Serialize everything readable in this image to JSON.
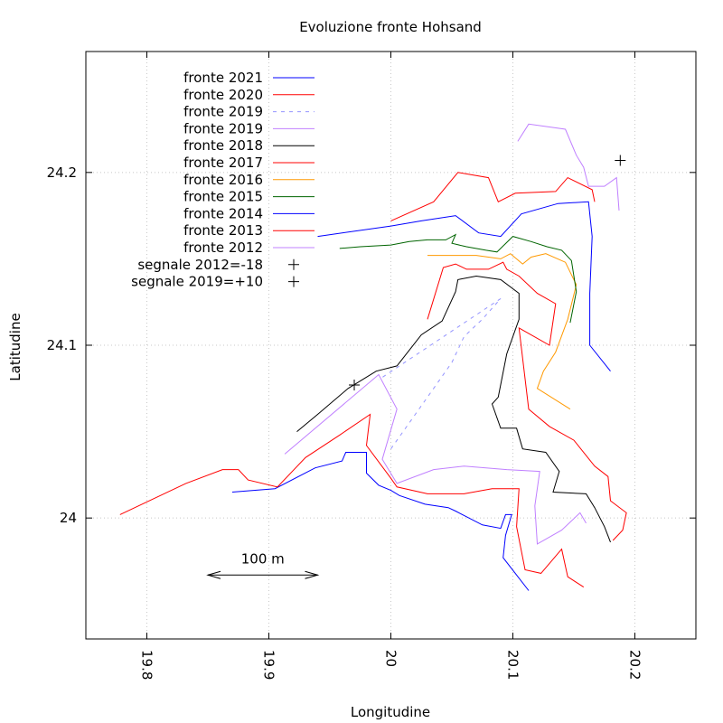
{
  "chart_data": {
    "type": "line",
    "title": "Evoluzione fronte Hohsand",
    "xlabel": "Longitudine",
    "ylabel": "Latitudine",
    "xlim": [
      19.75,
      20.25
    ],
    "ylim": [
      23.93,
      24.27
    ],
    "xticks": [
      {
        "value": 19.8,
        "label": "19.8"
      },
      {
        "value": 19.9,
        "label": "19.9"
      },
      {
        "value": 20.0,
        "label": "20"
      },
      {
        "value": 20.1,
        "label": "20.1"
      },
      {
        "value": 20.2,
        "label": "20.2"
      }
    ],
    "yticks": [
      {
        "value": 24.0,
        "label": "24"
      },
      {
        "value": 24.1,
        "label": "24.1"
      },
      {
        "value": 24.2,
        "label": "24.2"
      }
    ],
    "x_tick_label_rotation": "90deg clockwise",
    "grid": true,
    "legend_position": "top-left",
    "scale_bar": {
      "label": "100 m",
      "x": [
        19.85,
        19.94
      ],
      "y": 23.967
    },
    "series": [
      {
        "name": "fronte 2021",
        "color": "#0000ff",
        "dash": "solid",
        "points": [
          [
            19.87,
            24.015
          ],
          [
            19.905,
            24.017
          ],
          [
            19.938,
            24.029
          ],
          [
            19.96,
            24.033
          ],
          [
            19.963,
            24.038
          ],
          [
            19.98,
            24.038
          ],
          [
            19.98,
            24.026
          ],
          [
            19.99,
            24.019
          ],
          [
            20.0,
            24.016
          ],
          [
            20.007,
            24.013
          ],
          [
            20.028,
            24.008
          ],
          [
            20.047,
            24.006
          ],
          [
            20.053,
            24.004
          ],
          [
            20.075,
            23.996
          ],
          [
            20.09,
            23.994
          ],
          [
            20.094,
            24.002
          ],
          [
            20.099,
            24.002
          ],
          [
            20.094,
            23.99
          ],
          [
            20.092,
            23.977
          ],
          [
            20.113,
            23.958
          ]
        ]
      },
      {
        "name": "fronte 2020",
        "color": "#ff0000",
        "dash": "solid",
        "points": [
          [
            19.778,
            24.002
          ],
          [
            19.832,
            24.02
          ],
          [
            19.862,
            24.028
          ],
          [
            19.875,
            24.028
          ],
          [
            19.883,
            24.022
          ],
          [
            19.907,
            24.018
          ],
          [
            19.93,
            24.035
          ],
          [
            19.958,
            24.048
          ],
          [
            19.983,
            24.06
          ],
          [
            19.98,
            24.042
          ],
          [
            20.0,
            24.023
          ],
          [
            20.005,
            24.018
          ],
          [
            20.03,
            24.014
          ],
          [
            20.06,
            24.014
          ],
          [
            20.083,
            24.017
          ],
          [
            20.105,
            24.017
          ],
          [
            20.103,
            23.995
          ],
          [
            20.11,
            23.97
          ],
          [
            20.123,
            23.968
          ],
          [
            20.14,
            23.982
          ],
          [
            20.145,
            23.966
          ],
          [
            20.158,
            23.96
          ]
        ]
      },
      {
        "name": "fronte 2019",
        "color": "#9494ff",
        "dash": "dashed",
        "points": [
          [
            20.0,
            24.04
          ],
          [
            20.02,
            24.06
          ],
          [
            20.035,
            24.075
          ],
          [
            20.05,
            24.09
          ],
          [
            20.06,
            24.105
          ],
          [
            20.075,
            24.115
          ],
          [
            20.09,
            24.127
          ],
          [
            19.99,
            24.08
          ]
        ]
      },
      {
        "name": "fronte 2019",
        "color": "#c080ff",
        "dash": "solid",
        "points": [
          [
            19.913,
            24.037
          ],
          [
            19.99,
            24.083
          ],
          [
            20.005,
            24.063
          ],
          [
            19.993,
            24.034
          ],
          [
            20.005,
            24.02
          ],
          [
            20.035,
            24.028
          ],
          [
            20.06,
            24.03
          ],
          [
            20.095,
            24.028
          ],
          [
            20.122,
            24.027
          ],
          [
            20.118,
            24.007
          ],
          [
            20.12,
            23.985
          ],
          [
            20.14,
            23.993
          ],
          [
            20.155,
            24.003
          ],
          [
            20.16,
            23.997
          ]
        ]
      },
      {
        "name": "fronte 2018",
        "color": "#000000",
        "dash": "solid",
        "points": [
          [
            19.923,
            24.05
          ],
          [
            19.94,
            24.06
          ],
          [
            19.965,
            24.075
          ],
          [
            19.988,
            24.085
          ],
          [
            20.005,
            24.088
          ],
          [
            20.025,
            24.106
          ],
          [
            20.042,
            24.114
          ],
          [
            20.053,
            24.131
          ],
          [
            20.055,
            24.138
          ],
          [
            20.07,
            24.14
          ],
          [
            20.09,
            24.138
          ],
          [
            20.105,
            24.13
          ],
          [
            20.105,
            24.115
          ],
          [
            20.095,
            24.095
          ],
          [
            20.088,
            24.07
          ],
          [
            20.083,
            24.066
          ],
          [
            20.09,
            24.052
          ],
          [
            20.103,
            24.052
          ],
          [
            20.108,
            24.04
          ],
          [
            20.127,
            24.038
          ],
          [
            20.138,
            24.027
          ],
          [
            20.133,
            24.015
          ],
          [
            20.16,
            24.014
          ],
          [
            20.167,
            24.006
          ],
          [
            20.175,
            23.995
          ],
          [
            20.18,
            23.986
          ]
        ]
      },
      {
        "name": "fronte 2017",
        "color": "#ff0000",
        "dash": "solid",
        "points": [
          [
            20.0,
            24.172
          ],
          [
            20.035,
            24.183
          ],
          [
            20.055,
            24.2
          ],
          [
            20.08,
            24.197
          ],
          [
            20.088,
            24.183
          ],
          [
            20.102,
            24.188
          ],
          [
            20.135,
            24.189
          ],
          [
            20.145,
            24.197
          ],
          [
            20.165,
            24.19
          ],
          [
            20.167,
            24.183
          ]
        ]
      },
      {
        "name": "fronte 2016",
        "color": "#ff9900",
        "dash": "solid",
        "points": [
          [
            20.03,
            24.152
          ],
          [
            20.07,
            24.152
          ],
          [
            20.09,
            24.15
          ],
          [
            20.098,
            24.153
          ],
          [
            20.108,
            24.147
          ],
          [
            20.115,
            24.151
          ],
          [
            20.127,
            24.153
          ],
          [
            20.143,
            24.148
          ],
          [
            20.152,
            24.135
          ],
          [
            20.145,
            24.115
          ],
          [
            20.135,
            24.096
          ],
          [
            20.125,
            24.085
          ],
          [
            20.12,
            24.075
          ],
          [
            20.147,
            24.063
          ]
        ]
      },
      {
        "name": "fronte 2015",
        "color": "#006400",
        "dash": "solid",
        "points": [
          [
            19.958,
            24.156
          ],
          [
            19.975,
            24.157
          ],
          [
            20.0,
            24.158
          ],
          [
            20.015,
            24.16
          ],
          [
            20.03,
            24.161
          ],
          [
            20.045,
            24.161
          ],
          [
            20.053,
            24.164
          ],
          [
            20.05,
            24.159
          ],
          [
            20.062,
            24.157
          ],
          [
            20.078,
            24.155
          ],
          [
            20.087,
            24.154
          ],
          [
            20.1,
            24.163
          ],
          [
            20.115,
            24.16
          ],
          [
            20.128,
            24.157
          ],
          [
            20.14,
            24.155
          ],
          [
            20.148,
            24.149
          ],
          [
            20.152,
            24.131
          ],
          [
            20.147,
            24.113
          ]
        ]
      },
      {
        "name": "fronte 2014",
        "color": "#0000ff",
        "dash": "solid",
        "points": [
          [
            19.94,
            24.163
          ],
          [
            20.0,
            24.169
          ],
          [
            20.025,
            24.172
          ],
          [
            20.053,
            24.175
          ],
          [
            20.072,
            24.165
          ],
          [
            20.09,
            24.163
          ],
          [
            20.107,
            24.176
          ],
          [
            20.137,
            24.182
          ],
          [
            20.162,
            24.183
          ],
          [
            20.165,
            24.163
          ],
          [
            20.163,
            24.13
          ],
          [
            20.163,
            24.1
          ],
          [
            20.18,
            24.085
          ]
        ]
      },
      {
        "name": "fronte 2013",
        "color": "#ff0000",
        "dash": "solid",
        "points": [
          [
            20.03,
            24.115
          ],
          [
            20.043,
            24.145
          ],
          [
            20.053,
            24.147
          ],
          [
            20.062,
            24.144
          ],
          [
            20.08,
            24.144
          ],
          [
            20.092,
            24.148
          ],
          [
            20.095,
            24.144
          ],
          [
            20.105,
            24.14
          ],
          [
            20.12,
            24.13
          ],
          [
            20.135,
            24.124
          ],
          [
            20.13,
            24.1
          ],
          [
            20.105,
            24.11
          ],
          [
            20.113,
            24.063
          ],
          [
            20.13,
            24.053
          ],
          [
            20.15,
            24.045
          ],
          [
            20.167,
            24.03
          ],
          [
            20.178,
            24.024
          ],
          [
            20.18,
            24.01
          ],
          [
            20.193,
            24.003
          ],
          [
            20.19,
            23.993
          ],
          [
            20.182,
            23.987
          ]
        ]
      },
      {
        "name": "fronte 2012",
        "color": "#c080ff",
        "dash": "solid",
        "points": [
          [
            20.104,
            24.218
          ],
          [
            20.113,
            24.228
          ],
          [
            20.143,
            24.225
          ],
          [
            20.152,
            24.21
          ],
          [
            20.158,
            24.203
          ],
          [
            20.162,
            24.192
          ],
          [
            20.175,
            24.192
          ],
          [
            20.185,
            24.197
          ],
          [
            20.187,
            24.178
          ]
        ]
      }
    ],
    "markers": [
      {
        "name": "segnale 2012=-18",
        "symbol": "+",
        "x": 20.188,
        "y": 24.207
      },
      {
        "name": "segnale 2019=+10",
        "symbol": "+",
        "x": 19.97,
        "y": 24.077
      }
    ]
  }
}
